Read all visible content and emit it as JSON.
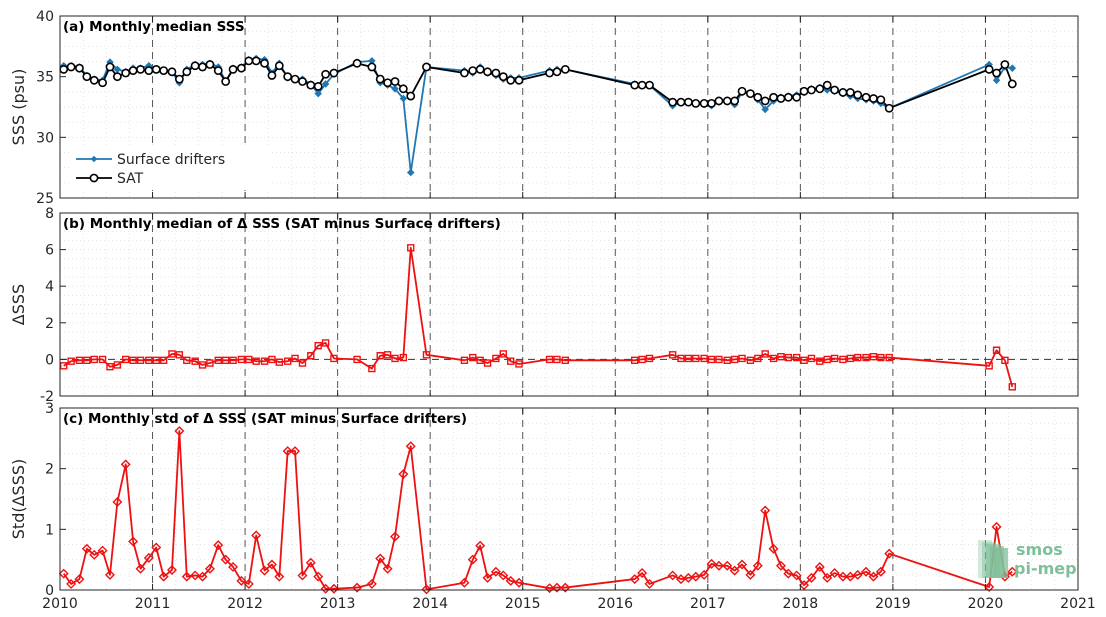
{
  "chart_data": [
    {
      "type": "line",
      "title": "(a) Monthly median SSS",
      "ylabel": "SSS (psu)",
      "ylim": [
        25,
        40
      ],
      "yticks": [
        25,
        30,
        35,
        40
      ],
      "xlim": [
        2010,
        2021
      ],
      "xticks": [
        2010,
        2011,
        2012,
        2013,
        2014,
        2015,
        2016,
        2017,
        2018,
        2019,
        2020,
        2021
      ],
      "grid": "dotted minor grid, dashed yearly lines",
      "legend": "lower-left",
      "series": [
        {
          "name": "Surface drifters",
          "color": "#1f77b4",
          "marker": "diamond",
          "x": [
            2010.04,
            2010.12,
            2010.21,
            2010.29,
            2010.37,
            2010.46,
            2010.54,
            2010.62,
            2010.71,
            2010.79,
            2010.87,
            2010.96,
            2011.04,
            2011.12,
            2011.21,
            2011.29,
            2011.37,
            2011.46,
            2011.54,
            2011.62,
            2011.71,
            2011.79,
            2011.87,
            2011.96,
            2012.04,
            2012.12,
            2012.21,
            2012.29,
            2012.37,
            2012.46,
            2012.54,
            2012.62,
            2012.71,
            2012.79,
            2012.87,
            2012.96,
            2013.21,
            2013.37,
            2013.46,
            2013.54,
            2013.62,
            2013.71,
            2013.79,
            2013.96,
            2014.37,
            2014.46,
            2014.54,
            2014.62,
            2014.71,
            2014.79,
            2014.87,
            2014.96,
            2015.29,
            2015.37,
            2015.46,
            2016.21,
            2016.29,
            2016.37,
            2016.62,
            2016.71,
            2016.79,
            2016.87,
            2016.96,
            2017.04,
            2017.12,
            2017.21,
            2017.29,
            2017.37,
            2017.46,
            2017.54,
            2017.62,
            2017.71,
            2017.79,
            2017.87,
            2017.96,
            2018.04,
            2018.12,
            2018.21,
            2018.29,
            2018.37,
            2018.46,
            2018.54,
            2018.62,
            2018.71,
            2018.79,
            2018.87,
            2018.96,
            2020.04,
            2020.12,
            2020.21,
            2020.29
          ],
          "y": [
            35.9,
            35.9,
            35.8,
            35.1,
            34.8,
            34.7,
            36.2,
            35.6,
            35.4,
            35.7,
            35.7,
            35.9,
            35.6,
            35.5,
            35.4,
            34.5,
            35.6,
            36.0,
            36.0,
            36.1,
            35.8,
            34.6,
            35.7,
            35.8,
            36.4,
            36.5,
            36.4,
            35.3,
            36.1,
            34.9,
            34.8,
            34.8,
            34.4,
            33.6,
            34.4,
            35.2,
            36.2,
            36.3,
            34.5,
            34.3,
            34.0,
            33.2,
            27.1,
            35.8,
            35.5,
            35.3,
            35.8,
            35.3,
            35.1,
            34.8,
            34.9,
            34.9,
            35.5,
            35.6,
            35.6,
            34.4,
            34.3,
            34.3,
            32.6,
            32.9,
            32.9,
            32.8,
            32.7,
            32.6,
            32.9,
            33.0,
            32.7,
            33.7,
            33.6,
            33.1,
            32.3,
            33.0,
            33.3,
            33.4,
            33.5,
            33.7,
            34.0,
            34.1,
            33.9,
            33.8,
            33.6,
            33.4,
            33.2,
            33.1,
            33.0,
            32.8,
            32.4,
            36.0,
            34.7,
            35.8,
            35.7
          ]
        },
        {
          "name": "SAT",
          "color": "#000000",
          "marker": "circle",
          "x": [
            2010.04,
            2010.12,
            2010.21,
            2010.29,
            2010.37,
            2010.46,
            2010.54,
            2010.62,
            2010.71,
            2010.79,
            2010.87,
            2010.96,
            2011.04,
            2011.12,
            2011.21,
            2011.29,
            2011.37,
            2011.46,
            2011.54,
            2011.62,
            2011.71,
            2011.79,
            2011.87,
            2011.96,
            2012.04,
            2012.12,
            2012.21,
            2012.29,
            2012.37,
            2012.46,
            2012.54,
            2012.62,
            2012.71,
            2012.79,
            2012.87,
            2012.96,
            2013.21,
            2013.37,
            2013.46,
            2013.54,
            2013.62,
            2013.71,
            2013.79,
            2013.96,
            2014.37,
            2014.46,
            2014.54,
            2014.62,
            2014.71,
            2014.79,
            2014.87,
            2014.96,
            2015.29,
            2015.37,
            2015.46,
            2016.21,
            2016.29,
            2016.37,
            2016.62,
            2016.71,
            2016.79,
            2016.87,
            2016.96,
            2017.04,
            2017.12,
            2017.21,
            2017.29,
            2017.37,
            2017.46,
            2017.54,
            2017.62,
            2017.71,
            2017.79,
            2017.87,
            2017.96,
            2018.04,
            2018.12,
            2018.21,
            2018.29,
            2018.37,
            2018.46,
            2018.54,
            2018.62,
            2018.71,
            2018.79,
            2018.87,
            2018.96,
            2020.04,
            2020.12,
            2020.21,
            2020.29
          ],
          "y": [
            35.6,
            35.8,
            35.7,
            35.0,
            34.7,
            34.5,
            35.8,
            35.0,
            35.3,
            35.5,
            35.6,
            35.5,
            35.6,
            35.5,
            35.4,
            34.8,
            35.4,
            35.9,
            35.8,
            36.0,
            35.5,
            34.6,
            35.6,
            35.7,
            36.3,
            36.3,
            36.1,
            35.1,
            35.9,
            35.0,
            34.8,
            34.6,
            34.3,
            34.2,
            35.2,
            35.3,
            36.1,
            35.8,
            34.8,
            34.5,
            34.6,
            34.0,
            33.4,
            35.8,
            35.3,
            35.5,
            35.6,
            35.4,
            35.3,
            35.0,
            34.7,
            34.7,
            35.3,
            35.4,
            35.6,
            34.3,
            34.3,
            34.3,
            32.9,
            32.9,
            32.9,
            32.8,
            32.8,
            32.8,
            33.0,
            33.0,
            33.0,
            33.8,
            33.6,
            33.3,
            33.0,
            33.3,
            33.2,
            33.3,
            33.3,
            33.8,
            33.9,
            34.0,
            34.3,
            33.9,
            33.7,
            33.7,
            33.5,
            33.3,
            33.2,
            33.1,
            32.4,
            35.6,
            35.3,
            36.0,
            34.4
          ]
        }
      ]
    },
    {
      "type": "line",
      "title": "(b) Monthly median of Δ SSS (SAT minus Surface drifters)",
      "ylabel": "ΔSSS",
      "ylim": [
        -2,
        8
      ],
      "yticks": [
        -2,
        0,
        2,
        4,
        6,
        8
      ],
      "xlim": [
        2010,
        2021
      ],
      "zero_line": "dashed",
      "series": [
        {
          "name": "",
          "color": "#ee1111",
          "marker": "square",
          "x": [
            2010.04,
            2010.12,
            2010.21,
            2010.29,
            2010.37,
            2010.46,
            2010.54,
            2010.62,
            2010.71,
            2010.79,
            2010.87,
            2010.96,
            2011.04,
            2011.12,
            2011.21,
            2011.29,
            2011.37,
            2011.46,
            2011.54,
            2011.62,
            2011.71,
            2011.79,
            2011.87,
            2011.96,
            2012.04,
            2012.12,
            2012.21,
            2012.29,
            2012.37,
            2012.46,
            2012.54,
            2012.62,
            2012.71,
            2012.79,
            2012.87,
            2012.96,
            2013.21,
            2013.37,
            2013.46,
            2013.54,
            2013.62,
            2013.71,
            2013.79,
            2013.96,
            2014.37,
            2014.46,
            2014.54,
            2014.62,
            2014.71,
            2014.79,
            2014.87,
            2014.96,
            2015.29,
            2015.37,
            2015.46,
            2016.21,
            2016.29,
            2016.37,
            2016.62,
            2016.71,
            2016.79,
            2016.87,
            2016.96,
            2017.04,
            2017.12,
            2017.21,
            2017.29,
            2017.37,
            2017.46,
            2017.54,
            2017.62,
            2017.71,
            2017.79,
            2017.87,
            2017.96,
            2018.04,
            2018.12,
            2018.21,
            2018.29,
            2018.37,
            2018.46,
            2018.54,
            2018.62,
            2018.71,
            2018.79,
            2018.87,
            2018.96,
            2020.04,
            2020.12,
            2020.21,
            2020.29
          ],
          "y": [
            -0.35,
            -0.1,
            -0.05,
            -0.05,
            0.0,
            0.0,
            -0.4,
            -0.3,
            0.0,
            -0.05,
            -0.05,
            -0.05,
            -0.05,
            -0.05,
            0.3,
            0.25,
            -0.05,
            -0.1,
            -0.3,
            -0.2,
            -0.05,
            -0.05,
            -0.05,
            0.0,
            0.0,
            -0.1,
            -0.1,
            0.0,
            -0.15,
            -0.1,
            0.05,
            -0.2,
            0.2,
            0.75,
            0.9,
            0.05,
            0.0,
            -0.5,
            0.2,
            0.25,
            0.05,
            0.1,
            6.1,
            0.25,
            -0.05,
            0.1,
            -0.05,
            -0.2,
            0.05,
            0.3,
            -0.1,
            -0.25,
            0.0,
            0.0,
            -0.05,
            -0.05,
            0.0,
            0.05,
            0.25,
            0.05,
            0.05,
            0.05,
            0.05,
            0.0,
            0.0,
            -0.05,
            0.0,
            0.05,
            -0.05,
            0.05,
            0.3,
            0.05,
            0.15,
            0.1,
            0.1,
            -0.05,
            0.05,
            -0.1,
            0.0,
            0.05,
            0.0,
            0.05,
            0.1,
            0.1,
            0.15,
            0.1,
            0.1,
            -0.35,
            0.5,
            -0.05,
            -1.5
          ]
        }
      ]
    },
    {
      "type": "line",
      "title": "(c) Monthly std of Δ SSS (SAT minus Surface drifters)",
      "ylabel": "Std(ΔSSS)",
      "ylim": [
        0,
        3
      ],
      "yticks": [
        0,
        1,
        2,
        3
      ],
      "xlim": [
        2010,
        2021
      ],
      "xticks": [
        2010,
        2011,
        2012,
        2013,
        2014,
        2015,
        2016,
        2017,
        2018,
        2019,
        2020,
        2021
      ],
      "series": [
        {
          "name": "",
          "color": "#ee1111",
          "marker": "diamond",
          "x": [
            2010.04,
            2010.12,
            2010.21,
            2010.29,
            2010.37,
            2010.46,
            2010.54,
            2010.62,
            2010.71,
            2010.79,
            2010.87,
            2010.96,
            2011.04,
            2011.12,
            2011.21,
            2011.29,
            2011.37,
            2011.46,
            2011.54,
            2011.62,
            2011.71,
            2011.79,
            2011.87,
            2011.96,
            2012.04,
            2012.12,
            2012.21,
            2012.29,
            2012.37,
            2012.46,
            2012.54,
            2012.62,
            2012.71,
            2012.79,
            2012.87,
            2012.96,
            2013.21,
            2013.37,
            2013.46,
            2013.54,
            2013.62,
            2013.71,
            2013.79,
            2013.96,
            2014.37,
            2014.46,
            2014.54,
            2014.62,
            2014.71,
            2014.79,
            2014.87,
            2014.96,
            2015.29,
            2015.37,
            2015.46,
            2016.21,
            2016.29,
            2016.37,
            2016.62,
            2016.71,
            2016.79,
            2016.87,
            2016.96,
            2017.04,
            2017.12,
            2017.21,
            2017.29,
            2017.37,
            2017.46,
            2017.54,
            2017.62,
            2017.71,
            2017.79,
            2017.87,
            2017.96,
            2018.04,
            2018.12,
            2018.21,
            2018.29,
            2018.37,
            2018.46,
            2018.54,
            2018.62,
            2018.71,
            2018.79,
            2018.87,
            2018.96,
            2020.04,
            2020.12,
            2020.21,
            2020.29
          ],
          "y": [
            0.27,
            0.1,
            0.18,
            0.68,
            0.58,
            0.65,
            0.25,
            1.45,
            2.07,
            0.8,
            0.35,
            0.53,
            0.7,
            0.22,
            0.33,
            2.62,
            0.22,
            0.24,
            0.22,
            0.35,
            0.74,
            0.5,
            0.38,
            0.15,
            0.1,
            0.9,
            0.32,
            0.42,
            0.22,
            2.29,
            2.29,
            0.24,
            0.45,
            0.22,
            0.02,
            0.02,
            0.04,
            0.1,
            0.52,
            0.35,
            0.88,
            1.91,
            2.37,
            0.01,
            0.12,
            0.5,
            0.73,
            0.2,
            0.3,
            0.24,
            0.15,
            0.12,
            0.03,
            0.04,
            0.04,
            0.18,
            0.28,
            0.1,
            0.24,
            0.18,
            0.2,
            0.22,
            0.25,
            0.43,
            0.4,
            0.4,
            0.32,
            0.42,
            0.25,
            0.4,
            1.31,
            0.68,
            0.4,
            0.27,
            0.24,
            0.08,
            0.2,
            0.38,
            0.2,
            0.28,
            0.22,
            0.22,
            0.25,
            0.3,
            0.22,
            0.3,
            0.6,
            0.05,
            1.04,
            0.22,
            0.3
          ]
        }
      ]
    }
  ],
  "watermark": {
    "line1": "smos",
    "line2": "pi-mep",
    "color": "#7fbf9a"
  }
}
